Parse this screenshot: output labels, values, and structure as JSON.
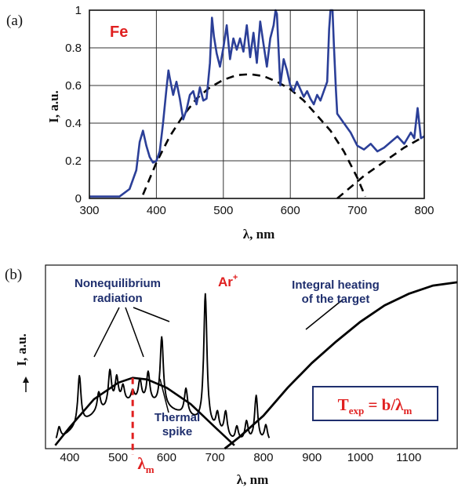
{
  "chart_data": [
    {
      "type": "line",
      "panel_label": "(a)",
      "annotation": "Fe",
      "xlabel": "λ, nm",
      "ylabel": "I, a.u.",
      "xlim": [
        300,
        800
      ],
      "ylim": [
        0,
        1
      ],
      "x_ticks": [
        300,
        400,
        500,
        600,
        700,
        800
      ],
      "y_ticks": [
        "0",
        "0.2",
        "0.4",
        "0.6",
        "0.8",
        "1"
      ],
      "y_tick_values": [
        0,
        0.2,
        0.4,
        0.6,
        0.8,
        1
      ],
      "grid": true,
      "colors": {
        "spectrum": "#2b3f98",
        "fit": "#000000",
        "annotation": "#e02020"
      },
      "series": [
        {
          "style": "solid",
          "x": [
            300,
            345,
            360,
            370,
            375,
            380,
            385,
            390,
            395,
            400,
            405,
            410,
            415,
            418,
            420,
            425,
            430,
            435,
            440,
            445,
            450,
            455,
            460,
            465,
            470,
            475,
            480,
            483,
            486,
            490,
            495,
            500,
            505,
            510,
            515,
            520,
            525,
            530,
            535,
            540,
            545,
            550,
            555,
            560,
            565,
            570,
            575,
            578,
            580,
            585,
            590,
            595,
            600,
            605,
            610,
            615,
            620,
            625,
            630,
            635,
            640,
            645,
            650,
            655,
            658,
            660,
            663,
            665,
            668,
            670,
            680,
            690,
            700,
            710,
            720,
            730,
            740,
            750,
            760,
            770,
            780,
            785,
            790,
            795,
            800
          ],
          "y": [
            0.01,
            0.01,
            0.05,
            0.15,
            0.3,
            0.36,
            0.28,
            0.22,
            0.19,
            0.2,
            0.25,
            0.4,
            0.58,
            0.68,
            0.64,
            0.55,
            0.62,
            0.53,
            0.42,
            0.47,
            0.55,
            0.57,
            0.5,
            0.59,
            0.52,
            0.53,
            0.72,
            0.96,
            0.86,
            0.77,
            0.7,
            0.8,
            0.92,
            0.74,
            0.85,
            0.79,
            0.85,
            0.78,
            0.92,
            0.75,
            0.88,
            0.72,
            0.94,
            0.82,
            0.7,
            0.85,
            0.92,
            1.0,
            0.98,
            0.6,
            0.74,
            0.68,
            0.6,
            0.57,
            0.62,
            0.58,
            0.54,
            0.57,
            0.53,
            0.5,
            0.55,
            0.52,
            0.57,
            0.62,
            0.9,
            1.0,
            1.0,
            0.82,
            0.58,
            0.45,
            0.4,
            0.35,
            0.28,
            0.26,
            0.29,
            0.25,
            0.27,
            0.3,
            0.33,
            0.29,
            0.35,
            0.32,
            0.48,
            0.32,
            0.33
          ]
        },
        {
          "style": "dashed",
          "x": [
            380,
            400,
            420,
            440,
            460,
            480,
            500,
            520,
            540,
            560,
            580,
            600,
            620,
            640,
            660,
            680,
            700,
            712
          ],
          "y": [
            0.02,
            0.19,
            0.33,
            0.44,
            0.53,
            0.59,
            0.63,
            0.655,
            0.66,
            0.65,
            0.62,
            0.58,
            0.52,
            0.44,
            0.36,
            0.25,
            0.11,
            0.01
          ]
        },
        {
          "style": "dashed",
          "x": [
            670,
            690,
            710,
            730,
            750,
            770,
            790,
            800
          ],
          "y": [
            0.0,
            0.06,
            0.12,
            0.17,
            0.22,
            0.27,
            0.31,
            0.33
          ]
        }
      ]
    },
    {
      "type": "line",
      "panel_label": "(b)",
      "xlabel": "λ, nm",
      "ylabel": "I, a.u.",
      "xlim": [
        350,
        1200
      ],
      "x_ticks": [
        400,
        500,
        600,
        700,
        800,
        900,
        1000,
        1100
      ],
      "grid": false,
      "annotations": {
        "nonequilibrium": [
          "Nonequilibrium",
          "radiation"
        ],
        "ar": "Ar",
        "ar_sup": "+",
        "integral": [
          "Integral heating",
          "of the target"
        ],
        "thermal": [
          "Thermal",
          "spike"
        ],
        "lambda_m": "λ",
        "lambda_m_sub": "m",
        "formula_T": "T",
        "formula_sub": "exp",
        "formula_rest": " = b/λ",
        "formula_m": "m"
      },
      "colors": {
        "text_blue": "#1f2f6e",
        "red": "#e02020",
        "curve": "#000000"
      },
      "lambda_m_value": 530,
      "series": [
        {
          "name_role": "thermal-spike-envelope",
          "x": [
            370,
            400,
            450,
            500,
            530,
            560,
            600,
            650,
            700,
            740
          ],
          "y": [
            0.02,
            0.13,
            0.3,
            0.4,
            0.43,
            0.42,
            0.37,
            0.27,
            0.13,
            0.02
          ]
        },
        {
          "name_role": "integral-heating",
          "x": [
            720,
            750,
            800,
            850,
            900,
            950,
            1000,
            1050,
            1100,
            1150,
            1200
          ],
          "y": [
            0.0,
            0.07,
            0.2,
            0.37,
            0.52,
            0.65,
            0.77,
            0.87,
            0.94,
            0.99,
            1.01
          ]
        },
        {
          "name_role": "emission-peaks",
          "peaks": [
            {
              "x": 378,
              "h": 0.08
            },
            {
              "x": 420,
              "h": 0.3
            },
            {
              "x": 460,
              "h": 0.12
            },
            {
              "x": 483,
              "h": 0.22
            },
            {
              "x": 497,
              "h": 0.16
            },
            {
              "x": 510,
              "h": 0.1
            },
            {
              "x": 530,
              "h": 0.06
            },
            {
              "x": 545,
              "h": 0.13
            },
            {
              "x": 562,
              "h": 0.18
            },
            {
              "x": 590,
              "h": 0.42
            },
            {
              "x": 640,
              "h": 0.16
            },
            {
              "x": 680,
              "h": 0.8
            },
            {
              "x": 705,
              "h": 0.11
            },
            {
              "x": 722,
              "h": 0.15
            },
            {
              "x": 745,
              "h": 0.09
            },
            {
              "x": 765,
              "h": 0.12
            },
            {
              "x": 785,
              "h": 0.28
            },
            {
              "x": 805,
              "h": 0.1
            }
          ]
        }
      ]
    }
  ]
}
